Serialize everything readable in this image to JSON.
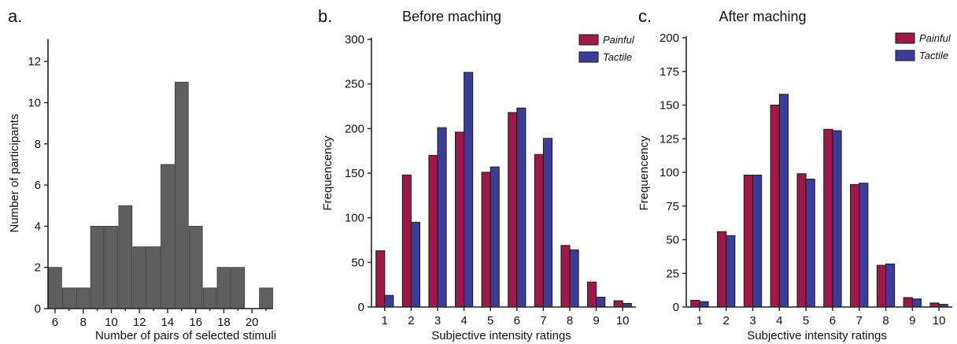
{
  "chart_data": [
    {
      "panel_label": "a.",
      "type": "bar",
      "title": "",
      "xlabel": "Number of pairs of selected stimuli",
      "ylabel": "Number of participants",
      "xlim": [
        5.5,
        21.5
      ],
      "ylim": [
        0,
        13
      ],
      "xticks": [
        "6",
        "8",
        "10",
        "12",
        "14",
        "16",
        "18",
        "20"
      ],
      "yticks": [
        "0",
        "2",
        "4",
        "6",
        "8",
        "10",
        "12"
      ],
      "x": [
        6,
        7,
        8,
        9,
        10,
        11,
        12,
        13,
        14,
        15,
        16,
        17,
        18,
        19,
        20,
        21
      ],
      "values": [
        2,
        1,
        1,
        4,
        4,
        5,
        3,
        3,
        7,
        11,
        4,
        1,
        2,
        2,
        0,
        1
      ],
      "color": "#5f5f5f"
    },
    {
      "panel_label": "b.",
      "type": "bar",
      "title": "Before maching",
      "xlabel": "Subjective intensity ratings",
      "ylabel": "Frequencency",
      "ylim": [
        0,
        300
      ],
      "yticks": [
        "0",
        "50",
        "100",
        "150",
        "200",
        "250",
        "300"
      ],
      "categories": [
        "1",
        "2",
        "3",
        "4",
        "5",
        "6",
        "7",
        "8",
        "9",
        "10"
      ],
      "legend_position": "top-right",
      "series": [
        {
          "name": "Painful",
          "color": "#a01848",
          "values": [
            63,
            148,
            170,
            196,
            151,
            218,
            171,
            69,
            28,
            7
          ]
        },
        {
          "name": "Tactile",
          "color": "#3c3c9a",
          "values": [
            13,
            95,
            201,
            263,
            157,
            223,
            189,
            64,
            11,
            4
          ]
        }
      ]
    },
    {
      "panel_label": "c.",
      "type": "bar",
      "title": "After maching",
      "xlabel": "Subjective intensity ratings",
      "ylabel": "Frequencency",
      "ylim": [
        0,
        200
      ],
      "yticks": [
        "0",
        "25",
        "50",
        "75",
        "100",
        "125",
        "150",
        "175",
        "200"
      ],
      "categories": [
        "1",
        "2",
        "3",
        "4",
        "5",
        "6",
        "7",
        "8",
        "9",
        "10"
      ],
      "legend_position": "top-right",
      "series": [
        {
          "name": "Painful",
          "color": "#a01848",
          "values": [
            5,
            56,
            98,
            150,
            99,
            132,
            91,
            31,
            7,
            3
          ]
        },
        {
          "name": "Tactile",
          "color": "#3c3c9a",
          "values": [
            4,
            53,
            98,
            158,
            95,
            131,
            92,
            32,
            6,
            2
          ]
        }
      ]
    }
  ]
}
